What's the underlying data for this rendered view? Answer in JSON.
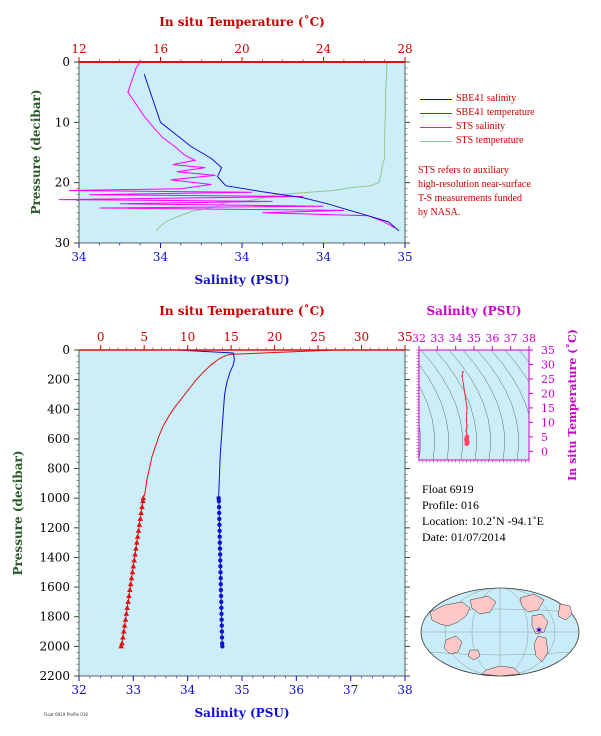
{
  "colors": {
    "plot_bg": "#cceef8",
    "temperature": "#e01010",
    "salinity": "#1010d0",
    "sts_salinity": "#ff00ff",
    "sts_temperature": "#8fc88f",
    "ts_axis": "#cc00cc",
    "ylabel": "#2a5a2a",
    "map_ocean": "#c8ecf8",
    "map_land": "#ffc8c8"
  },
  "chart_data": [
    {
      "id": "near-surface",
      "type": "line",
      "title": "",
      "top_axis_label": "In situ Temperature (˚C)",
      "bottom_axis_label": "Salinity (PSU)",
      "ylabel": "Pressure (decibar)",
      "temperature_ticks": [
        "12",
        "16",
        "20",
        "24",
        "28"
      ],
      "temperature_lim": [
        12,
        28
      ],
      "salinity_ticks": [
        "34",
        "34",
        "34",
        "34",
        "35"
      ],
      "salinity_lim": [
        33.4,
        35.0
      ],
      "pressure_ticks": [
        "0",
        "10",
        "20",
        "30"
      ],
      "pressure_lim": [
        0,
        30
      ],
      "legend": [
        {
          "name": "SBE41 salinity",
          "color": "#1010d0"
        },
        {
          "name": "SBE41 temperature",
          "color": "#e01010"
        },
        {
          "name": "STS salinity",
          "color": "#ff00ff"
        },
        {
          "name": "STS temperature",
          "color": "#8fc88f"
        }
      ],
      "note": [
        "STS refers to auxiliary",
        "high-resolution near-surface",
        "T-S measurements funded",
        "by NASA."
      ],
      "series": [
        {
          "name": "STS temperature",
          "variable": "temperature",
          "points": [
            [
              27.1,
              0
            ],
            [
              27.1,
              2
            ],
            [
              27.05,
              5
            ],
            [
              27.05,
              8
            ],
            [
              27.0,
              12
            ],
            [
              27.0,
              15
            ],
            [
              27.0,
              16
            ],
            [
              26.9,
              17
            ],
            [
              26.8,
              19
            ],
            [
              26.7,
              20
            ],
            [
              26.3,
              20.5
            ],
            [
              25.4,
              20.8
            ],
            [
              24.5,
              21.3
            ],
            [
              23.3,
              21.6
            ],
            [
              22.1,
              21.9
            ],
            [
              21.5,
              22.1
            ],
            [
              21.2,
              22.4
            ],
            [
              20.8,
              22.7
            ],
            [
              20.3,
              23.0
            ],
            [
              19.4,
              23.2
            ],
            [
              18.9,
              23.6
            ],
            [
              18.7,
              24.0
            ],
            [
              18.2,
              24.3
            ],
            [
              17.6,
              24.7
            ],
            [
              17.1,
              25.3
            ],
            [
              16.7,
              25.8
            ],
            [
              16.3,
              26.4
            ],
            [
              16.0,
              27.2
            ],
            [
              15.8,
              28.0
            ]
          ]
        },
        {
          "name": "SBE41 temperature",
          "variable": "temperature",
          "points": [
            [
              12.0,
              0
            ],
            [
              28.0,
              0
            ]
          ]
        },
        {
          "name": "STS salinity",
          "variable": "salinity",
          "points": [
            [
              33.7,
              0
            ],
            [
              33.68,
              1
            ],
            [
              33.66,
              3
            ],
            [
              33.64,
              5
            ],
            [
              33.68,
              7
            ],
            [
              33.72,
              9
            ],
            [
              33.77,
              11
            ],
            [
              33.81,
              12.5
            ],
            [
              33.87,
              14
            ],
            [
              33.92,
              15.5
            ],
            [
              33.97,
              16.3
            ],
            [
              33.86,
              17
            ],
            [
              34.02,
              17.5
            ],
            [
              33.88,
              18.2
            ],
            [
              34.07,
              18.8
            ],
            [
              33.85,
              19.5
            ],
            [
              34.05,
              20.3
            ],
            [
              33.9,
              21
            ],
            [
              33.35,
              21.3
            ],
            [
              34.25,
              21.6
            ],
            [
              33.45,
              22.0
            ],
            [
              34.5,
              22.3
            ],
            [
              33.3,
              22.8
            ],
            [
              34.35,
              23.1
            ],
            [
              33.6,
              23.5
            ],
            [
              34.6,
              23.9
            ],
            [
              33.5,
              24.2
            ],
            [
              34.7,
              24.6
            ],
            [
              34.3,
              25.0
            ],
            [
              34.82,
              25.5
            ],
            [
              34.9,
              26.5
            ],
            [
              34.95,
              27.5
            ]
          ]
        },
        {
          "name": "SBE41 salinity",
          "variable": "salinity",
          "points": [
            [
              33.72,
              2
            ],
            [
              33.8,
              10
            ],
            [
              33.95,
              14
            ],
            [
              34.05,
              16
            ],
            [
              34.1,
              17.5
            ],
            [
              34.08,
              19
            ],
            [
              34.12,
              20.5
            ],
            [
              34.3,
              21.5
            ],
            [
              34.5,
              22.5
            ],
            [
              34.62,
              23.5
            ],
            [
              34.72,
              24.5
            ],
            [
              34.82,
              25.5
            ],
            [
              34.92,
              26.5
            ],
            [
              34.97,
              28
            ]
          ]
        }
      ]
    },
    {
      "id": "profile",
      "type": "line",
      "title": "",
      "top_axis_label": "In situ Temperature (˚C)",
      "bottom_axis_label": "Salinity (PSU)",
      "ylabel": "Pressure (decibar)",
      "temperature_ticks": [
        "0",
        "5",
        "10",
        "15",
        "20",
        "25",
        "30",
        "35"
      ],
      "temperature_lim": [
        -2.5,
        35
      ],
      "salinity_ticks": [
        "32",
        "33",
        "34",
        "35",
        "36",
        "37",
        "38"
      ],
      "salinity_lim": [
        32,
        38
      ],
      "pressure_ticks": [
        "0",
        "200",
        "400",
        "600",
        "800",
        "1000",
        "1200",
        "1400",
        "1600",
        "1800",
        "2000",
        "2200"
      ],
      "pressure_lim": [
        0,
        2200
      ],
      "series": [
        {
          "name": "temperature",
          "variable": "temperature",
          "points": [
            [
              9.0,
              0
            ],
            [
              27.0,
              0
            ],
            [
              14.8,
              30
            ],
            [
              14.3,
              40
            ],
            [
              13.6,
              60
            ],
            [
              12.7,
              100
            ],
            [
              11.8,
              150
            ],
            [
              11.0,
              200
            ],
            [
              10.2,
              260
            ],
            [
              9.4,
              320
            ],
            [
              8.6,
              380
            ],
            [
              7.9,
              440
            ],
            [
              7.2,
              510
            ],
            [
              6.7,
              580
            ],
            [
              6.3,
              650
            ],
            [
              5.9,
              720
            ],
            [
              5.6,
              800
            ],
            [
              5.3,
              880
            ],
            [
              5.1,
              960
            ],
            [
              4.9,
              1000
            ],
            [
              4.85,
              1020
            ],
            [
              4.75,
              1060
            ],
            [
              4.65,
              1100
            ],
            [
              4.55,
              1140
            ],
            [
              4.45,
              1180
            ],
            [
              4.35,
              1220
            ],
            [
              4.25,
              1260
            ],
            [
              4.15,
              1300
            ],
            [
              4.05,
              1340
            ],
            [
              3.95,
              1380
            ],
            [
              3.85,
              1420
            ],
            [
              3.75,
              1460
            ],
            [
              3.65,
              1500
            ],
            [
              3.55,
              1540
            ],
            [
              3.45,
              1580
            ],
            [
              3.35,
              1620
            ],
            [
              3.25,
              1660
            ],
            [
              3.15,
              1700
            ],
            [
              3.05,
              1740
            ],
            [
              2.95,
              1780
            ],
            [
              2.85,
              1820
            ],
            [
              2.75,
              1860
            ],
            [
              2.65,
              1900
            ],
            [
              2.55,
              1940
            ],
            [
              2.45,
              1980
            ],
            [
              2.35,
              2000
            ]
          ]
        },
        {
          "name": "salinity",
          "variable": "salinity",
          "points": [
            [
              33.8,
              0
            ],
            [
              34.84,
              20
            ],
            [
              34.86,
              60
            ],
            [
              34.84,
              100
            ],
            [
              34.78,
              150
            ],
            [
              34.72,
              220
            ],
            [
              34.68,
              300
            ],
            [
              34.66,
              400
            ],
            [
              34.64,
              500
            ],
            [
              34.62,
              600
            ],
            [
              34.6,
              700
            ],
            [
              34.59,
              800
            ],
            [
              34.58,
              900
            ],
            [
              34.57,
              1000
            ],
            [
              34.575,
              1020
            ],
            [
              34.578,
              1060
            ],
            [
              34.58,
              1100
            ],
            [
              34.582,
              1140
            ],
            [
              34.585,
              1180
            ],
            [
              34.588,
              1220
            ],
            [
              34.59,
              1260
            ],
            [
              34.592,
              1300
            ],
            [
              34.595,
              1340
            ],
            [
              34.598,
              1380
            ],
            [
              34.6,
              1420
            ],
            [
              34.602,
              1460
            ],
            [
              34.605,
              1500
            ],
            [
              34.608,
              1540
            ],
            [
              34.61,
              1580
            ],
            [
              34.612,
              1620
            ],
            [
              34.615,
              1660
            ],
            [
              34.618,
              1700
            ],
            [
              34.62,
              1740
            ],
            [
              34.622,
              1780
            ],
            [
              34.625,
              1820
            ],
            [
              34.628,
              1860
            ],
            [
              34.63,
              1900
            ],
            [
              34.632,
              1940
            ],
            [
              34.635,
              1980
            ],
            [
              34.638,
              2000
            ]
          ]
        }
      ]
    },
    {
      "id": "ts-diagram",
      "type": "scatter",
      "title": "",
      "top_axis_label": "Salinity (PSU)",
      "right_axis_label": "In situ Temperature (˚C)",
      "salinity_ticks": [
        "32",
        "33",
        "34",
        "35",
        "36",
        "37",
        "38"
      ],
      "salinity_lim": [
        32,
        38
      ],
      "temperature_ticks": [
        "0",
        "5",
        "10",
        "15",
        "20",
        "25",
        "30",
        "35"
      ],
      "temperature_lim": [
        -3,
        35
      ],
      "points": [
        [
          34.4,
          27.5
        ],
        [
          34.35,
          26
        ],
        [
          34.45,
          22
        ],
        [
          34.55,
          18
        ],
        [
          34.62,
          15
        ],
        [
          34.6,
          13
        ],
        [
          34.58,
          11
        ],
        [
          34.62,
          9
        ],
        [
          34.6,
          8
        ],
        [
          34.57,
          7
        ],
        [
          34.6,
          6
        ],
        [
          34.62,
          5
        ],
        [
          34.6,
          4.5
        ],
        [
          34.58,
          4
        ],
        [
          34.62,
          3.5
        ],
        [
          34.64,
          3
        ],
        [
          34.6,
          2.6
        ]
      ]
    }
  ],
  "float_info": {
    "float": "Float  6919",
    "profile": "Profile:  016",
    "location": "Location:  10.2˚N  -94.1˚E",
    "date": "Date:  01/07/2014"
  },
  "map": {
    "float_marker_color": "#1010d0",
    "float_location": [
      10.2,
      -94.1
    ]
  },
  "footer": "Float 6919 Profile 016"
}
